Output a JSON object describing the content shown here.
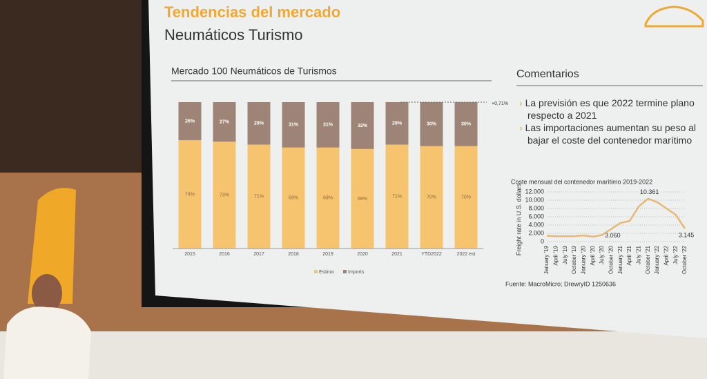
{
  "slide": {
    "title": "Tendencias del mercado",
    "subtitle": "Neumáticos Turismo",
    "comments_title": "Comentarios",
    "bullets": [
      "La previsión es que 2022 termine plano respecto a 2021",
      "Las importaciones aumentan su peso al bajar el coste del contenedor marítimo"
    ],
    "source": "Fuente: MacroMicro; DrewryID 1250636"
  },
  "chart_data": [
    {
      "type": "stacked_bar",
      "title": "Mercado 100 Neumáticos de Turismos",
      "categories": [
        "2015",
        "2016",
        "2017",
        "2018",
        "2019",
        "2020",
        "2021",
        "YTD2022",
        "2022 est"
      ],
      "series": [
        {
          "name": "Estima",
          "color": "#f6c46f",
          "values": [
            74,
            73,
            71,
            69,
            69,
            68,
            71,
            70,
            70
          ],
          "value_labels": [
            "74%",
            "73%",
            "71%",
            "69%",
            "69%",
            "68%",
            "71%",
            "70%",
            "70%"
          ]
        },
        {
          "name": "Imports",
          "color": "#9d8477",
          "values": [
            26,
            27,
            29,
            31,
            31,
            32,
            29,
            30,
            30
          ],
          "value_labels": [
            "26%",
            "27%",
            "29%",
            "31%",
            "31%",
            "32%",
            "29%",
            "30%",
            "30%"
          ]
        }
      ],
      "annotation": "+0,71%",
      "legend": "bottom"
    },
    {
      "type": "line",
      "title": "Coste mensual del contenedor marítimo 2019-2022",
      "ylabel": "Freight rate in U.S. dollars",
      "categories": [
        "January '19",
        "April '19",
        "July '19",
        "October '19",
        "January '20",
        "April '20",
        "July '20",
        "October '20",
        "January '21",
        "April '21",
        "July '21",
        "October '21",
        "January '22",
        "April '22",
        "July '22",
        "October '22"
      ],
      "values": [
        1400,
        1300,
        1300,
        1300,
        1500,
        1200,
        1600,
        3060,
        4500,
        5000,
        8500,
        10361,
        9500,
        8000,
        6500,
        3145
      ],
      "value_labels": [
        null,
        null,
        null,
        null,
        null,
        null,
        null,
        "3.060",
        null,
        null,
        null,
        "10.361",
        null,
        null,
        null,
        "3.145"
      ],
      "color": "#e8b774",
      "ylim": [
        0,
        12000
      ],
      "yticks": [
        0,
        {
          "value": 2000,
          "label": "2.000"
        },
        {
          "value": 4000,
          "label": "4.000"
        },
        {
          "value": 6000,
          "label": "6.000"
        },
        {
          "value": 8000,
          "label": "8.000"
        },
        {
          "value": 10000,
          "label": "10.000"
        },
        {
          "value": 12000,
          "label": "12.000"
        }
      ],
      "grid": true
    }
  ]
}
